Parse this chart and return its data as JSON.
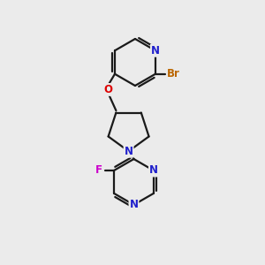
{
  "background_color": "#ebebeb",
  "atom_colors": {
    "N": "#2020cc",
    "O": "#dd0000",
    "F": "#cc00cc",
    "Br": "#bb6600",
    "C": "#000000"
  },
  "bond_color": "#1a1a1a",
  "bond_width": 1.6,
  "font_size": 8.5
}
